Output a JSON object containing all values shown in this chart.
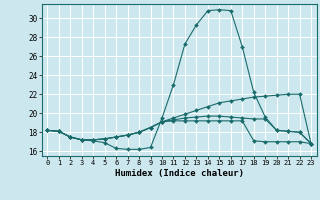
{
  "xlabel": "Humidex (Indice chaleur)",
  "bg_color": "#cce8ee",
  "grid_color": "#ffffff",
  "line_color": "#1a6b6b",
  "xlim": [
    -0.5,
    23.5
  ],
  "ylim": [
    15.5,
    31.5
  ],
  "xticks": [
    0,
    1,
    2,
    3,
    4,
    5,
    6,
    7,
    8,
    9,
    10,
    11,
    12,
    13,
    14,
    15,
    16,
    17,
    18,
    19,
    20,
    21,
    22,
    23
  ],
  "yticks": [
    16,
    18,
    20,
    22,
    24,
    26,
    28,
    30
  ],
  "series": [
    [
      18.2,
      18.1,
      17.5,
      17.2,
      17.1,
      16.9,
      16.3,
      16.2,
      16.2,
      16.4,
      19.5,
      23.0,
      27.3,
      29.3,
      30.8,
      30.9,
      30.8,
      27.0,
      22.2,
      19.6,
      18.2,
      18.1,
      18.0,
      16.8
    ],
    [
      18.2,
      18.1,
      17.5,
      17.2,
      17.2,
      17.3,
      17.5,
      17.7,
      18.0,
      18.5,
      19.1,
      19.5,
      19.9,
      20.3,
      20.7,
      21.1,
      21.3,
      21.5,
      21.7,
      21.8,
      21.9,
      22.0,
      22.0,
      16.8
    ],
    [
      18.2,
      18.1,
      17.5,
      17.2,
      17.2,
      17.3,
      17.5,
      17.7,
      18.0,
      18.5,
      19.1,
      19.3,
      19.5,
      19.6,
      19.7,
      19.7,
      19.6,
      19.5,
      19.4,
      19.4,
      18.2,
      18.1,
      18.0,
      16.8
    ],
    [
      18.2,
      18.1,
      17.5,
      17.2,
      17.2,
      17.3,
      17.5,
      17.7,
      18.0,
      18.5,
      19.1,
      19.2,
      19.2,
      19.2,
      19.2,
      19.2,
      19.2,
      19.2,
      17.1,
      17.0,
      17.0,
      17.0,
      17.0,
      16.8
    ]
  ]
}
